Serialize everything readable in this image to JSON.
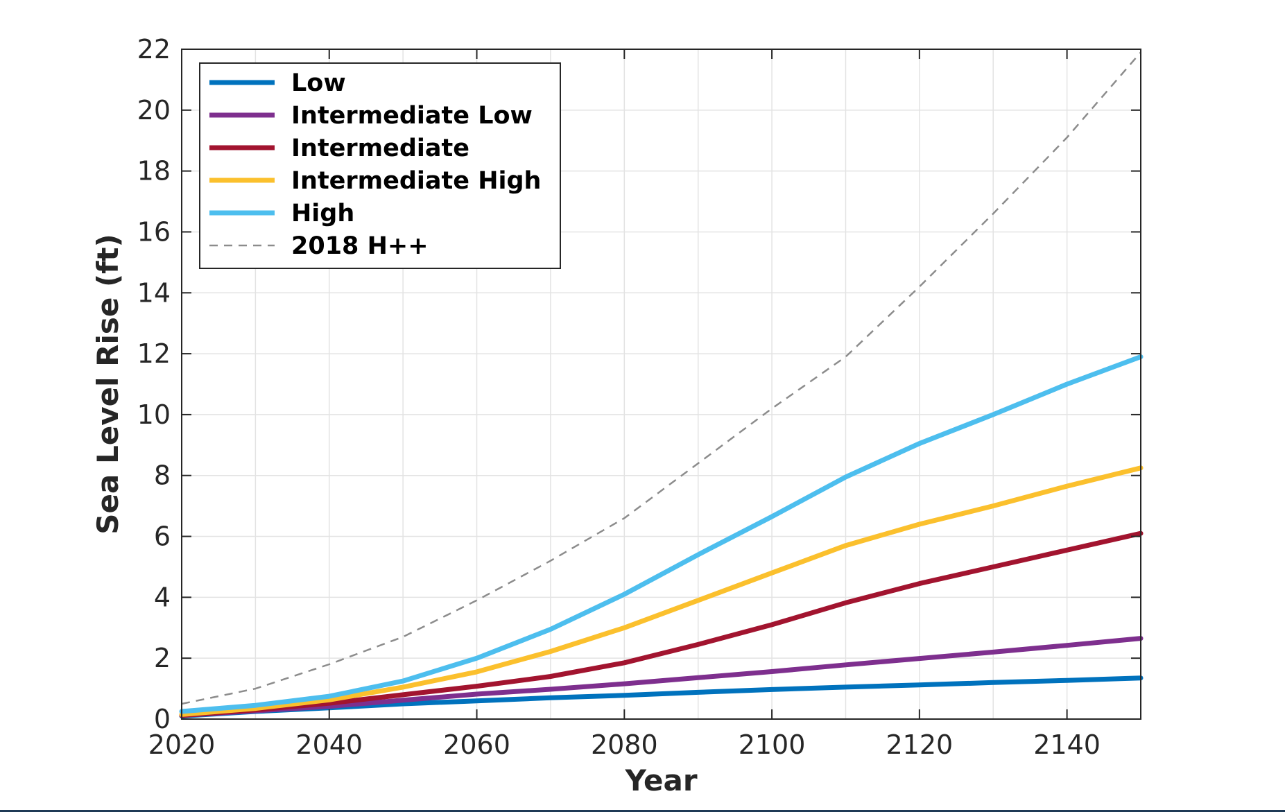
{
  "chart_data": {
    "type": "line",
    "title": "",
    "xlabel": "Year",
    "ylabel": "Sea Level Rise (ft)",
    "xlim": [
      2020,
      2150
    ],
    "ylim": [
      0,
      22
    ],
    "xticks": [
      2020,
      2040,
      2060,
      2080,
      2100,
      2120,
      2140
    ],
    "yticks": [
      0,
      2,
      4,
      6,
      8,
      10,
      12,
      14,
      16,
      18,
      20,
      22
    ],
    "grid": true,
    "legend_position": "top-left",
    "x": [
      2020,
      2030,
      2040,
      2050,
      2060,
      2070,
      2080,
      2090,
      2100,
      2110,
      2120,
      2130,
      2140,
      2150
    ],
    "series": [
      {
        "name": "Low",
        "color": "#0072bd",
        "style": "solid",
        "values": [
          0.1,
          0.25,
          0.37,
          0.5,
          0.6,
          0.7,
          0.78,
          0.88,
          0.97,
          1.05,
          1.12,
          1.2,
          1.27,
          1.35
        ]
      },
      {
        "name": "Intermediate Low",
        "color": "#7e2f8e",
        "style": "solid",
        "values": [
          0.12,
          0.27,
          0.42,
          0.62,
          0.82,
          0.98,
          1.16,
          1.36,
          1.56,
          1.78,
          1.99,
          2.2,
          2.42,
          2.65
        ]
      },
      {
        "name": "Intermediate",
        "color": "#a2142f",
        "style": "solid",
        "values": [
          0.12,
          0.3,
          0.52,
          0.8,
          1.08,
          1.4,
          1.85,
          2.45,
          3.1,
          3.82,
          4.45,
          5.0,
          5.55,
          6.1
        ]
      },
      {
        "name": "Intermediate High",
        "color": "#fbc02d",
        "style": "solid",
        "values": [
          0.15,
          0.35,
          0.63,
          1.05,
          1.55,
          2.22,
          3.0,
          3.9,
          4.8,
          5.7,
          6.4,
          7.0,
          7.65,
          8.25
        ]
      },
      {
        "name": "High",
        "color": "#4dbeee",
        "style": "solid",
        "values": [
          0.25,
          0.45,
          0.75,
          1.25,
          2.0,
          2.95,
          4.1,
          5.4,
          6.65,
          7.95,
          9.05,
          10.0,
          11.0,
          11.9
        ]
      },
      {
        "name": "2018 H++",
        "color": "#8c8c8c",
        "style": "dashed",
        "values": [
          0.5,
          1.0,
          1.8,
          2.7,
          3.9,
          5.2,
          6.6,
          8.4,
          10.2,
          11.9,
          14.2,
          16.6,
          19.1,
          21.9
        ]
      }
    ]
  }
}
